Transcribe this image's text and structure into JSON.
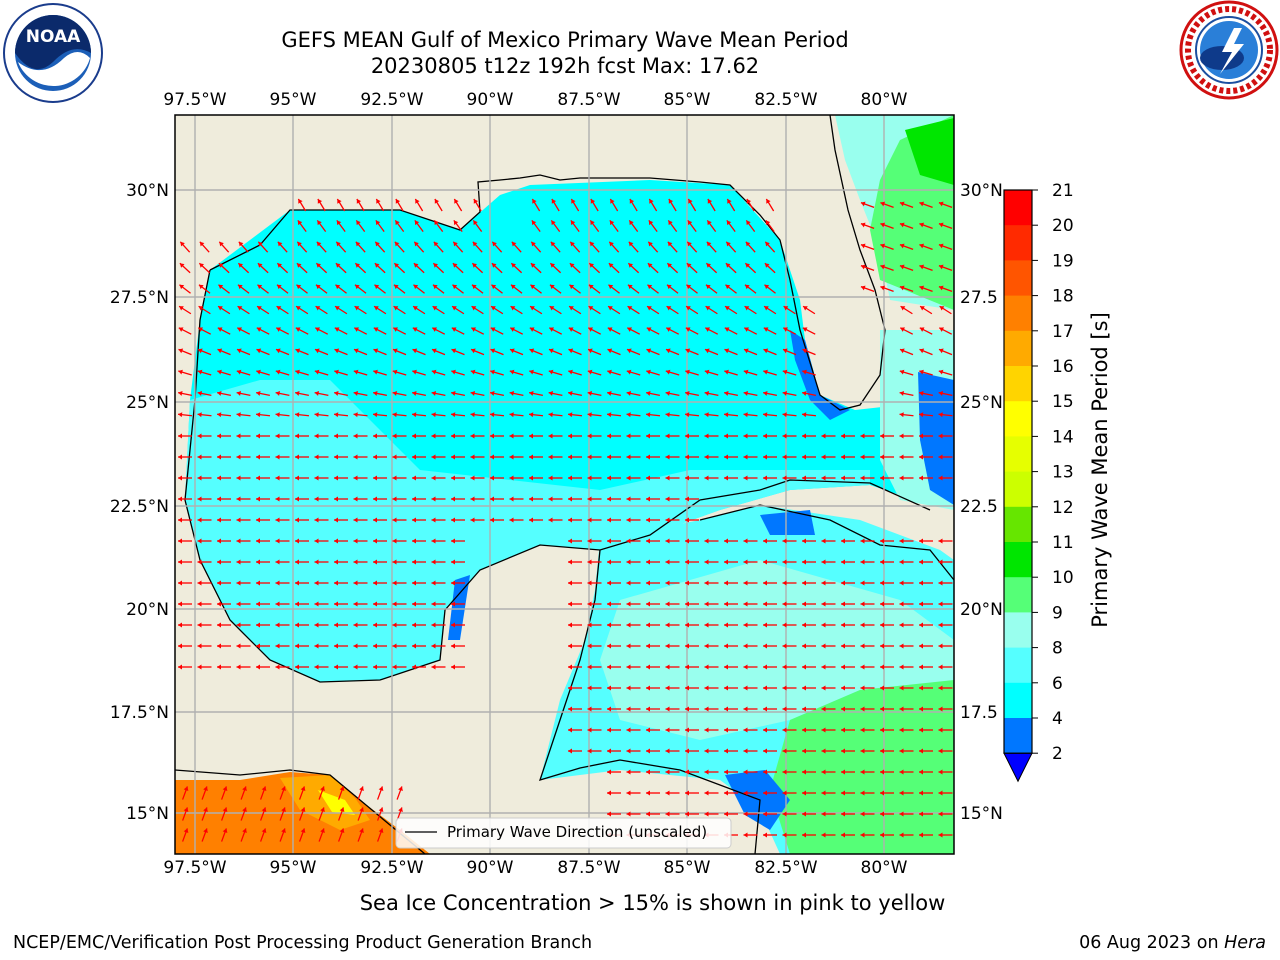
{
  "title_line1": "GEFS MEAN Gulf of Mexico Primary Wave Mean Period",
  "title_line2": "20230805 t12z 192h fcst   Max: 17.62",
  "logos": {
    "left": "noaa-logo",
    "right": "nws-logo"
  },
  "map": {
    "lon_ticks": [
      "97.5°W",
      "95°W",
      "92.5°W",
      "90°W",
      "87.5°W",
      "85°W",
      "82.5°W",
      "80°W"
    ],
    "lat_ticks_left": [
      "30°N",
      "27.5°N",
      "25°N",
      "22.5°N",
      "20°N",
      "17.5°N",
      "15°N"
    ],
    "lat_ticks_right": [
      "30°N",
      "27.5",
      "25°N",
      "22.5",
      "20°N",
      "17.5",
      "15°N"
    ],
    "legend_label": "Primary Wave Direction (unscaled)",
    "colors": {
      "land": "#efecdc",
      "coast": "#000000",
      "arrows": "#ff0000",
      "grid": "#b0b0b0"
    }
  },
  "colorbar": {
    "label": "Primary Wave Mean Period [s]",
    "ticks": [
      "21",
      "20",
      "19",
      "18",
      "17",
      "16",
      "15",
      "14",
      "13",
      "12",
      "11",
      "10",
      "9",
      "8",
      "6",
      "4",
      "2"
    ],
    "colors": [
      "#ff0000",
      "#ff2a00",
      "#ff5500",
      "#ff8000",
      "#ffaa00",
      "#ffd400",
      "#ffff00",
      "#e6ff00",
      "#ccff00",
      "#66e600",
      "#00e600",
      "#55ff77",
      "#99ffee",
      "#55ffff",
      "#00ffff",
      "#0077ff",
      "#0000ff"
    ]
  },
  "ice_note": "Sea Ice Concentration > 15% is shown in pink to yellow",
  "footer_left": "NCEP/EMC/Verification Post Processing Product Generation Branch",
  "footer_date": "06 Aug 2023 on",
  "footer_host": "Hera"
}
